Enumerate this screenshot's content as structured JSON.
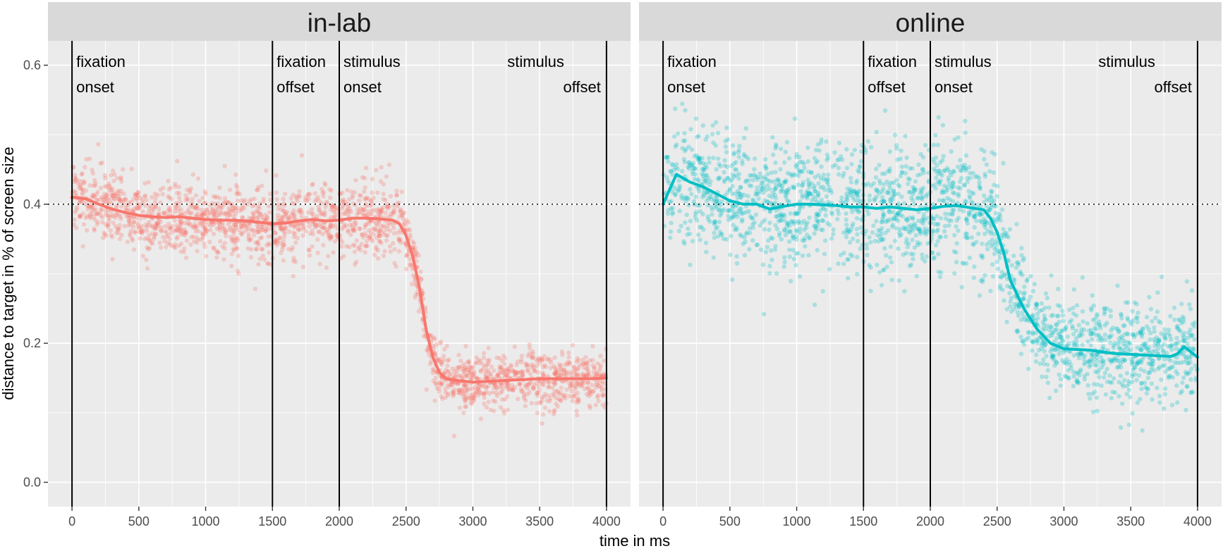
{
  "chart_data": {
    "type": "scatter",
    "xlabel": "time in ms",
    "ylabel": "distance to target in % of screen size",
    "xlim": [
      -180,
      4180
    ],
    "ylim": [
      -0.035,
      0.635
    ],
    "x_ticks": [
      0,
      500,
      1000,
      1500,
      2000,
      2500,
      3000,
      3500,
      4000
    ],
    "x_tick_labels": [
      "0",
      "500",
      "1000",
      "1500",
      "2000",
      "2500",
      "3000",
      "3500",
      "4000"
    ],
    "y_ticks": [
      0.0,
      0.2,
      0.4,
      0.6
    ],
    "y_tick_labels": [
      "0.0",
      "0.2",
      "0.4",
      "0.6"
    ],
    "reference_line": {
      "y": 0.4,
      "style": "dotted"
    },
    "grid": true,
    "facet_layout": "two panels side by side",
    "events": [
      {
        "x": 0,
        "line1": "fixation",
        "line2": "onset",
        "align": "start"
      },
      {
        "x": 1500,
        "line1": "fixation",
        "line2": "offset",
        "align": "start"
      },
      {
        "x": 2000,
        "line1": "stimulus",
        "line2": "onset",
        "align": "start"
      },
      {
        "x": 4000,
        "line1": "stimulus",
        "line2": "offset",
        "align": "end"
      }
    ],
    "panels": [
      {
        "title": "in-lab",
        "color": "#F8766D",
        "points_note": "dense scatter of individual samples around the mean line",
        "spread_before": 0.025,
        "spread_after": 0.02,
        "n_points": 2200,
        "mean_line": {
          "x": [
            0,
            100,
            200,
            300,
            400,
            500,
            600,
            700,
            800,
            900,
            1000,
            1100,
            1200,
            1300,
            1400,
            1500,
            1600,
            1700,
            1800,
            1900,
            2000,
            2100,
            2200,
            2300,
            2400,
            2450,
            2500,
            2550,
            2600,
            2650,
            2700,
            2750,
            2800,
            2900,
            3000,
            3100,
            3200,
            3300,
            3400,
            3500,
            3600,
            3700,
            3800,
            3900,
            4000
          ],
          "y": [
            0.41,
            0.408,
            0.4,
            0.393,
            0.388,
            0.384,
            0.382,
            0.381,
            0.382,
            0.38,
            0.378,
            0.377,
            0.377,
            0.376,
            0.374,
            0.372,
            0.373,
            0.376,
            0.378,
            0.376,
            0.377,
            0.38,
            0.38,
            0.379,
            0.377,
            0.372,
            0.355,
            0.325,
            0.28,
            0.22,
            0.18,
            0.158,
            0.149,
            0.146,
            0.144,
            0.145,
            0.146,
            0.147,
            0.148,
            0.149,
            0.149,
            0.149,
            0.149,
            0.149,
            0.15
          ]
        }
      },
      {
        "title": "online",
        "color": "#00BFC4",
        "points_note": "wider scatter of individual samples around the mean line",
        "spread_before": 0.045,
        "spread_after": 0.035,
        "n_points": 2200,
        "mean_line": {
          "x": [
            0,
            100,
            200,
            300,
            400,
            500,
            600,
            700,
            800,
            900,
            1000,
            1100,
            1200,
            1300,
            1400,
            1500,
            1600,
            1700,
            1800,
            1900,
            2000,
            2100,
            2200,
            2300,
            2400,
            2450,
            2500,
            2550,
            2600,
            2700,
            2800,
            2900,
            3000,
            3100,
            3200,
            3300,
            3400,
            3500,
            3600,
            3700,
            3800,
            3850,
            3900,
            4000
          ],
          "y": [
            0.4,
            0.443,
            0.432,
            0.425,
            0.415,
            0.405,
            0.4,
            0.4,
            0.393,
            0.397,
            0.4,
            0.4,
            0.399,
            0.398,
            0.396,
            0.396,
            0.394,
            0.396,
            0.394,
            0.392,
            0.394,
            0.397,
            0.398,
            0.395,
            0.392,
            0.38,
            0.36,
            0.33,
            0.29,
            0.25,
            0.22,
            0.2,
            0.192,
            0.191,
            0.19,
            0.187,
            0.185,
            0.184,
            0.183,
            0.182,
            0.181,
            0.185,
            0.195,
            0.18
          ]
        }
      }
    ]
  }
}
